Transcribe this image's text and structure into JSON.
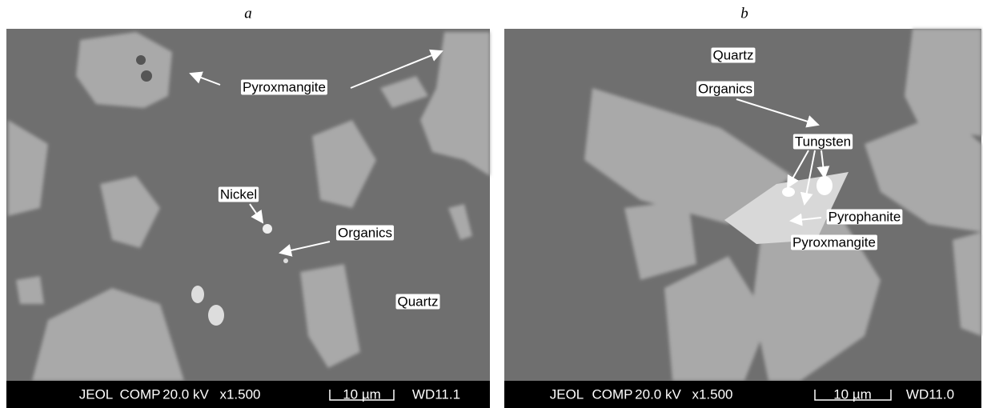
{
  "panels": [
    {
      "label": "a",
      "annotations": [
        "Pyroxmangite",
        "Nickel",
        "Organics",
        "Quartz"
      ],
      "info_bar": [
        "JEOL",
        "COMP",
        "20.0 kV",
        "x1.500",
        "10 µm",
        "WD11.1"
      ]
    },
    {
      "label": "b",
      "annotations": [
        "Quartz",
        "Organics",
        "Tungsten",
        "Pyrophanite",
        "Pyroxmangite"
      ],
      "info_bar": [
        "JEOL",
        "COMP",
        "20.0 kV",
        "x1.500",
        "10 µm",
        "WD11.0"
      ]
    }
  ]
}
